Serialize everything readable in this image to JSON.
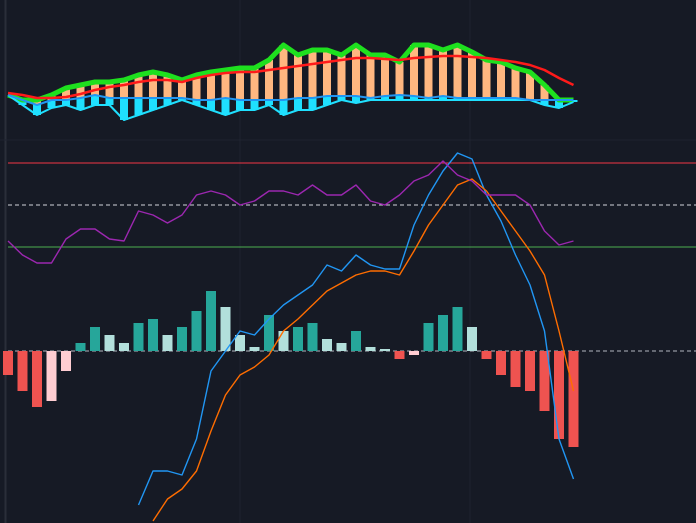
{
  "chart_data": [
    {
      "type": "band",
      "ylim": [
        0,
        100
      ],
      "fill_up": "#ffb780",
      "fill_down": "#1fe0ff",
      "series": [
        {
          "color": "#1ee01e",
          "values": [
            35,
            30,
            30,
            35,
            42,
            45,
            48,
            48,
            50,
            55,
            58,
            55,
            50,
            55,
            58,
            60,
            62,
            62,
            70,
            85,
            75,
            80,
            80,
            75,
            85,
            75,
            75,
            68,
            85,
            85,
            80,
            85,
            78,
            70,
            68,
            62,
            58,
            45,
            30,
            30
          ]
        },
        {
          "color": "#2196f3",
          "values": [
            35,
            30,
            25,
            30,
            30,
            32,
            35,
            32,
            32,
            32,
            32,
            32,
            32,
            30,
            30,
            32,
            30,
            30,
            30,
            30,
            32,
            32,
            34,
            34,
            34,
            32,
            34,
            35,
            34,
            32,
            34,
            32,
            32,
            32,
            32,
            32,
            30,
            30,
            30,
            30
          ]
        },
        {
          "color": "#1fe0ff",
          "values": [
            35,
            25,
            15,
            22,
            25,
            20,
            25,
            25,
            10,
            15,
            20,
            25,
            30,
            25,
            20,
            15,
            20,
            20,
            25,
            15,
            20,
            20,
            25,
            30,
            27,
            30,
            30,
            30,
            30,
            30,
            30,
            30,
            30,
            30,
            30,
            30,
            30,
            25,
            22,
            28
          ]
        },
        {
          "color": "#ff1a1a",
          "values": [
            37,
            35,
            32,
            32,
            33,
            36,
            40,
            43,
            45,
            48,
            50,
            50,
            48,
            52,
            55,
            57,
            58,
            58,
            60,
            62,
            64,
            66,
            68,
            70,
            72,
            72,
            71,
            70,
            72,
            73,
            74,
            74,
            73,
            72,
            70,
            68,
            65,
            60,
            52,
            45
          ]
        }
      ]
    },
    {
      "type": "oscillator",
      "ylim": [
        -86,
        100
      ],
      "levels": [
        {
          "value": 94,
          "color": "#f23645",
          "dashed": false
        },
        {
          "value": 73,
          "color": "#d1d4dc",
          "dashed": true
        },
        {
          "value": 52,
          "color": "#4caf50",
          "dashed": false
        },
        {
          "value": 0,
          "color": "#b2b5be",
          "dashed": true
        }
      ],
      "histogram": {
        "colors": {
          "up_rising": "#26a69a",
          "up_falling": "#b2dfdb",
          "down_falling": "#ef5350",
          "down_rising": "#ffcdd2"
        },
        "values": [
          -12,
          -20,
          -28,
          -25,
          -10,
          4,
          12,
          8,
          4,
          14,
          16,
          8,
          12,
          20,
          30,
          22,
          8,
          2,
          18,
          10,
          12,
          14,
          6,
          4,
          10,
          2,
          1,
          -4,
          -2,
          14,
          18,
          22,
          12,
          -4,
          -12,
          -18,
          -20,
          -30,
          -44,
          -48
        ]
      },
      "series": [
        {
          "color": "#2196f3",
          "values": [
            null,
            null,
            null,
            null,
            null,
            null,
            null,
            null,
            null,
            -77,
            -60,
            -60,
            -62,
            -44,
            -10,
            0,
            10,
            8,
            16,
            23,
            28,
            33,
            43,
            40,
            48,
            43,
            41,
            41,
            63,
            78,
            90,
            99,
            96,
            78,
            65,
            48,
            33,
            10,
            -44,
            -64
          ]
        },
        {
          "color": "#ff6d00",
          "values": [
            null,
            null,
            null,
            null,
            null,
            null,
            null,
            null,
            null,
            null,
            -85,
            -74,
            -69,
            -60,
            -40,
            -22,
            -12,
            -8,
            -2,
            10,
            16,
            23,
            30,
            34,
            38,
            40,
            40,
            38,
            50,
            63,
            73,
            83,
            86,
            80,
            70,
            60,
            50,
            38,
            10,
            -20
          ]
        },
        {
          "color": "#9c27b0",
          "values": [
            55,
            48,
            44,
            44,
            56,
            61,
            61,
            56,
            55,
            70,
            68,
            64,
            68,
            78,
            80,
            78,
            73,
            75,
            80,
            80,
            78,
            83,
            78,
            78,
            83,
            75,
            73,
            78,
            85,
            88,
            95,
            88,
            85,
            78,
            78,
            78,
            73,
            60,
            53,
            55
          ]
        }
      ]
    }
  ]
}
